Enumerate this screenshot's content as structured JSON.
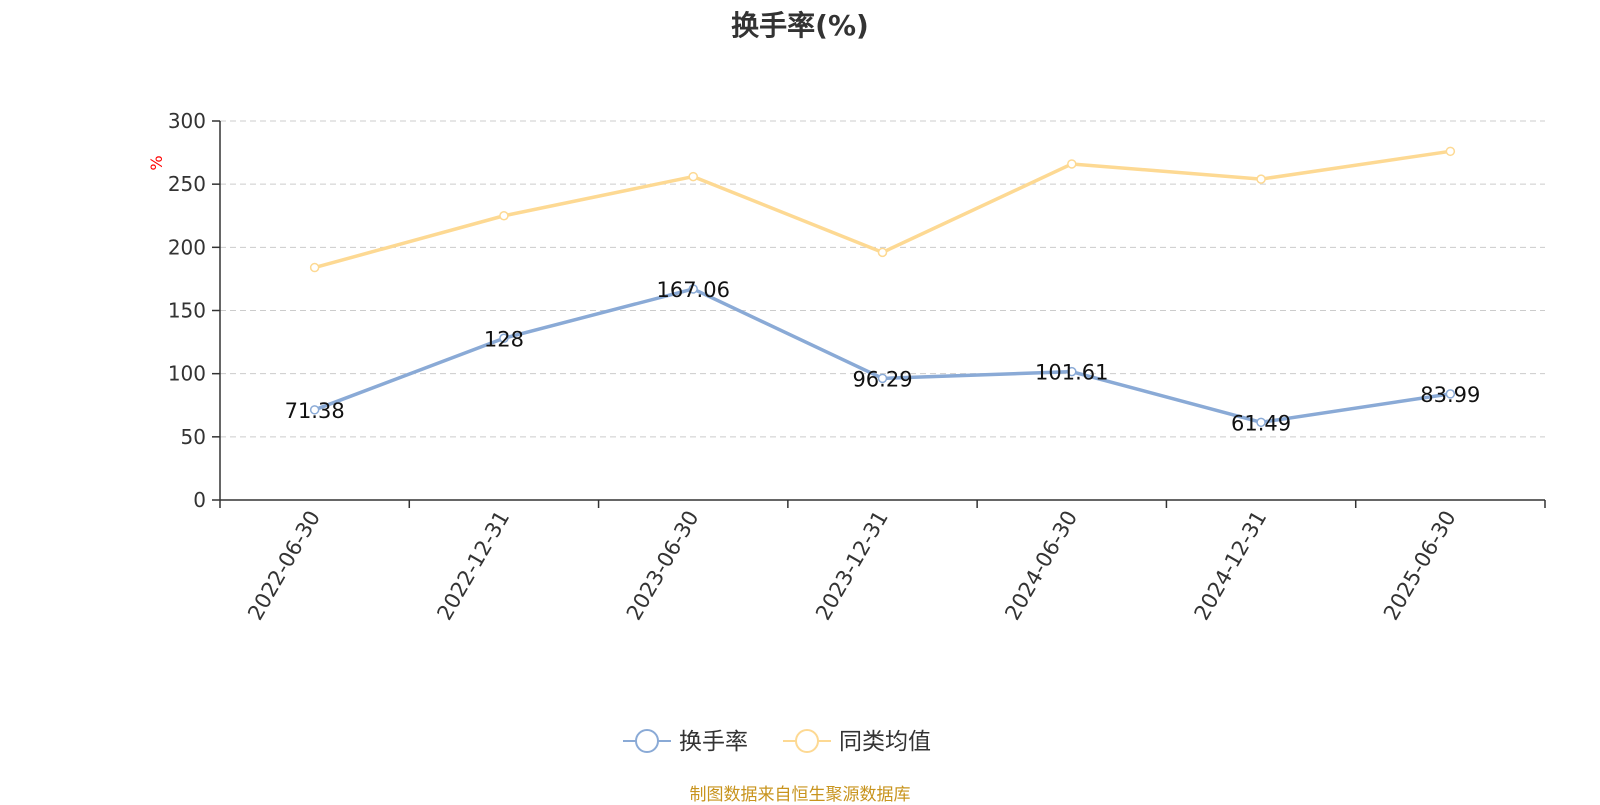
{
  "chart_data": {
    "type": "line",
    "title": "换手率(%)",
    "ylabel": "%",
    "xlabel": "",
    "categories": [
      "2022-06-30",
      "2022-12-31",
      "2023-06-30",
      "2023-12-31",
      "2024-06-30",
      "2024-12-31",
      "2025-06-30"
    ],
    "ylim": [
      0,
      300
    ],
    "yticks": [
      0,
      50,
      100,
      150,
      200,
      250,
      300
    ],
    "grid": true,
    "legend_position": "bottom-center",
    "series": [
      {
        "name": "换手率",
        "values": [
          71.38,
          128,
          167.06,
          96.29,
          101.61,
          61.49,
          83.99
        ],
        "value_labels": [
          "71.38",
          "128",
          "167.06",
          "96.29",
          "101.61",
          "61.49",
          "83.99"
        ],
        "color": "#8aaad6",
        "show_labels": true
      },
      {
        "name": "同类均值",
        "values": [
          184,
          225,
          256,
          196,
          266,
          254,
          276
        ],
        "color": "#fdd993",
        "show_labels": false
      }
    ]
  },
  "source": "制图数据来自恒生聚源数据库",
  "colors": {
    "axis": "#333333",
    "grid": "#cccccc",
    "ylabel": "#ff0000"
  }
}
